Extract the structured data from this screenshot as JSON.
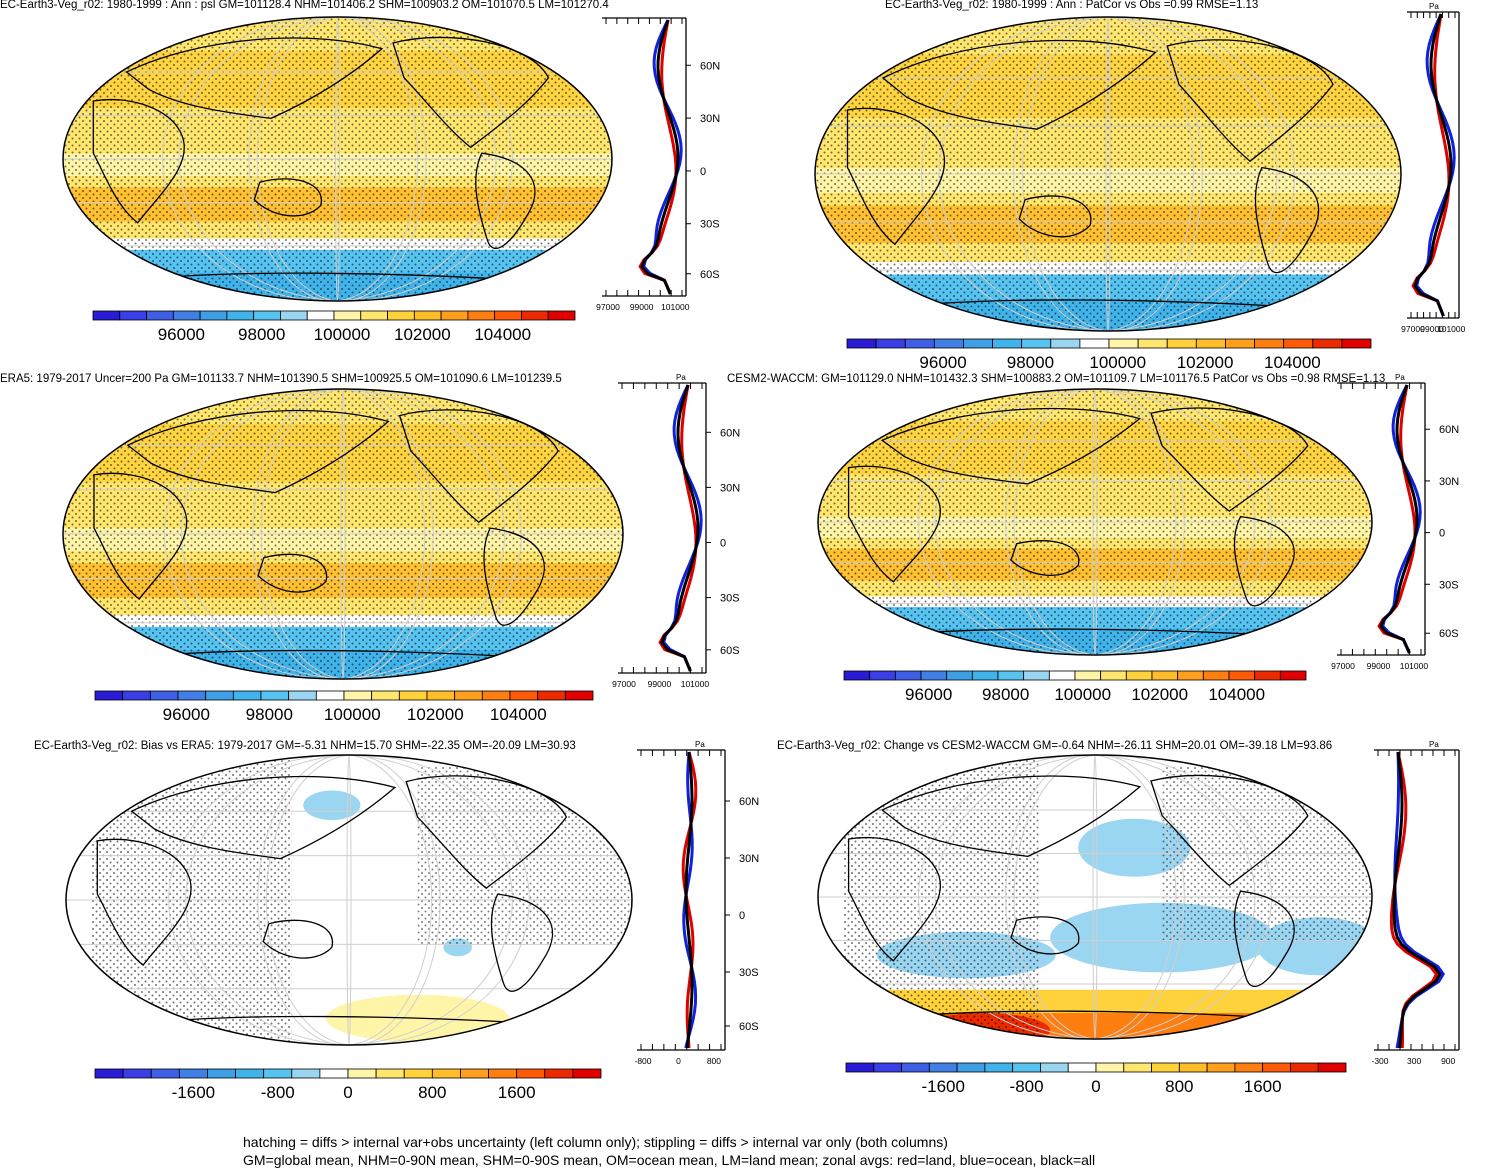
{
  "panels": [
    {
      "id": "p1",
      "title": "EC-Earth3-Veg_r02: 1980-1999 : Ann : psl GM=101128.4 NHM=101406.2 SHM=100903.2 OM=101070.5 LM=101270.4",
      "kind": "abs",
      "zonal_axis": {
        "ticks": [
          "97000",
          "99000",
          "101000"
        ],
        "lat_labels": [
          "60N",
          "30N",
          "0",
          "30S",
          "60S"
        ],
        "unit": ""
      }
    },
    {
      "id": "p2",
      "title": "EC-Earth3-Veg_r02: 1980-1999 : Ann : PatCor vs Obs =0.99 RMSE=1.13",
      "kind": "abs",
      "zonal_axis": {
        "ticks": [
          "97000",
          "99000",
          "101000"
        ],
        "lat_labels": [],
        "unit": "Pa"
      }
    },
    {
      "id": "p3",
      "title": "ERA5: 1979-2017 Uncer=200 Pa GM=101133.7 NHM=101390.5 SHM=100925.5 OM=101090.6 LM=101239.5",
      "kind": "abs",
      "zonal_axis": {
        "ticks": [
          "97000",
          "99000",
          "101000"
        ],
        "lat_labels": [
          "60N",
          "30N",
          "0",
          "30S",
          "60S"
        ],
        "unit": "Pa"
      }
    },
    {
      "id": "p4",
      "title": "CESM2-WACCM: GM=101129.0 NHM=101432.3 SHM=100883.2 OM=101109.7 LM=101176.5 PatCor vs Obs =0.98 RMSE=1.13",
      "kind": "abs",
      "zonal_axis": {
        "ticks": [
          "97000",
          "99000",
          "101000"
        ],
        "lat_labels": [
          "60N",
          "30N",
          "0",
          "30S",
          "60S"
        ],
        "unit": "Pa"
      }
    },
    {
      "id": "p5",
      "title": "EC-Earth3-Veg_r02: Bias vs ERA5: 1979-2017 GM=-5.31 NHM=15.70 SHM=-22.35 OM=-20.09 LM=30.93",
      "kind": "diff",
      "zonal_axis": {
        "ticks": [
          "-800",
          "0",
          "800"
        ],
        "lat_labels": [
          "60N",
          "30N",
          "0",
          "30S",
          "60S"
        ],
        "unit": "Pa"
      }
    },
    {
      "id": "p6",
      "title": "EC-Earth3-Veg_r02: Change vs CESM2-WACCM GM=-0.64 NHM=-26.11 SHM=20.01 OM=-39.18 LM=93.86",
      "kind": "diff",
      "zonal_axis": {
        "ticks": [
          "-300",
          "300",
          "900"
        ],
        "lat_labels": [],
        "unit": "Pa"
      }
    }
  ],
  "colorbars": {
    "abs": {
      "labels": [
        "96000",
        "98000",
        "100000",
        "102000",
        "104000"
      ]
    },
    "diff": {
      "labels": [
        "-1600",
        "-800",
        "0",
        "800",
        "1600"
      ]
    }
  },
  "palette": [
    "#2a1bd6",
    "#3a3ee6",
    "#3f5fe6",
    "#3f7fe6",
    "#3f9fe6",
    "#40b4ea",
    "#56c3f0",
    "#9ad6f2",
    "#ffffff",
    "#fff5a8",
    "#ffe66e",
    "#ffd23c",
    "#ffbd2a",
    "#ff9f1e",
    "#ff7e10",
    "#ff5a08",
    "#ec2a00",
    "#e00000"
  ],
  "footnotes": {
    "line1": "hatching = diffs > internal var+obs uncertainty (left column only); stippling = diffs > internal var only (both columns)",
    "line2": "GM=global mean, NHM=0-90N mean, SHM=0-90S mean, OM=ocean mean, LM=land mean; zonal avgs: red=land, blue=ocean, black=all"
  }
}
